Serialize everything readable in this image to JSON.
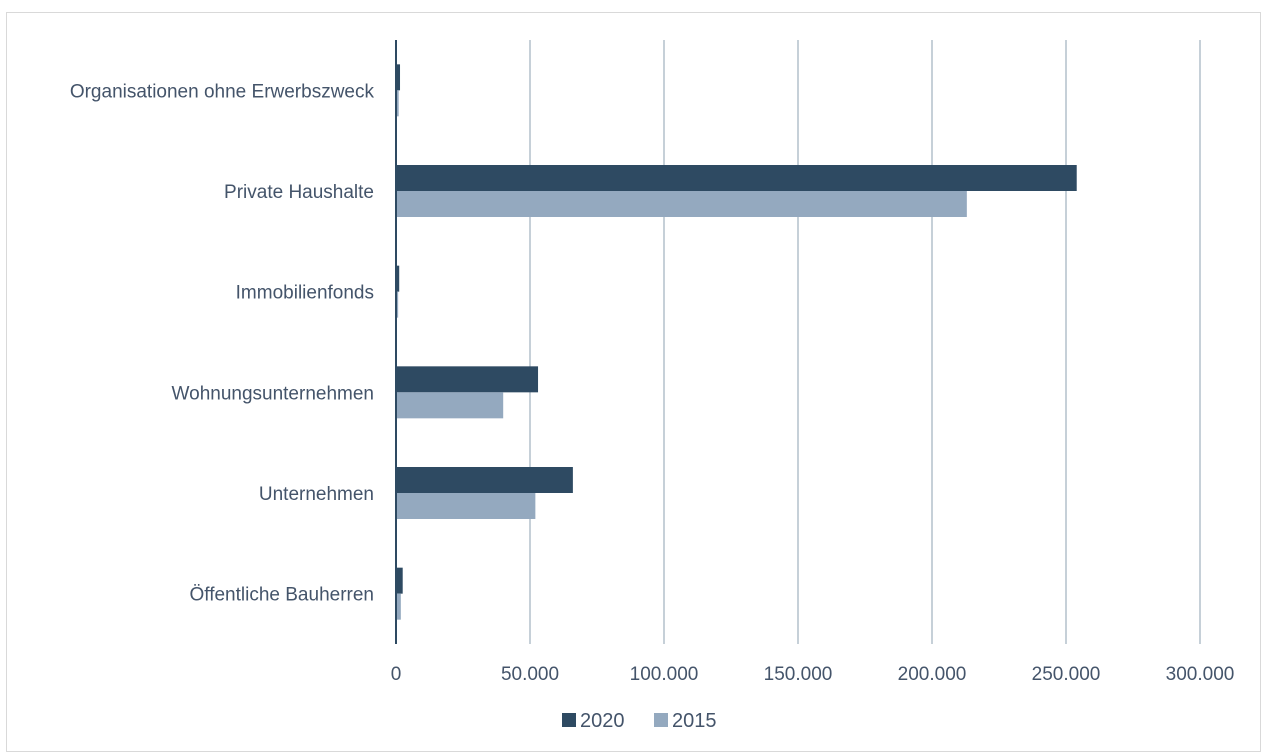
{
  "chart_data": {
    "type": "bar",
    "orientation": "horizontal",
    "title": "",
    "xlabel": "",
    "ylabel": "",
    "categories": [
      "Organisationen ohne Erwerbszweck",
      "Private Haushalte",
      "Immobilienfonds",
      "Wohnungsunternehmen",
      "Unternehmen",
      "Öffentliche Bauherren"
    ],
    "series": [
      {
        "name": "2020",
        "color": "#2e4a62",
        "values": [
          1500,
          254000,
          1200,
          53000,
          66000,
          2500
        ]
      },
      {
        "name": "2015",
        "color": "#94a9bf",
        "values": [
          1000,
          213000,
          800,
          40000,
          52000,
          1800
        ]
      }
    ],
    "xlim": [
      0,
      300000
    ],
    "xticks": [
      0,
      50000,
      100000,
      150000,
      200000,
      250000,
      300000
    ],
    "xtick_labels": [
      "0",
      "50.000",
      "100.000",
      "150.000",
      "200.000",
      "250.000",
      "300.000"
    ],
    "grid": "vertical",
    "legend": "bottom"
  }
}
